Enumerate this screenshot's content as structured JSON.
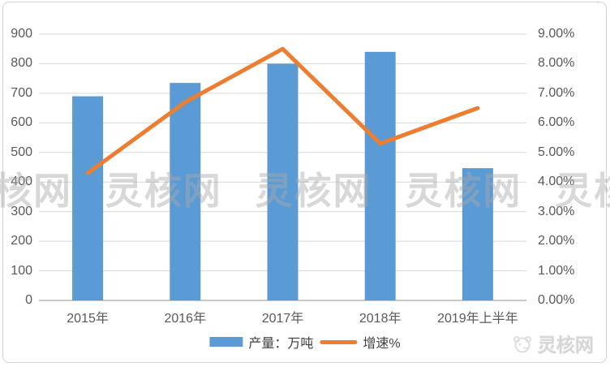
{
  "chart_data": {
    "type": "bar",
    "subtype": "combo-bar-line-dual-axis",
    "categories": [
      "2015年",
      "2016年",
      "2017年",
      "2018年",
      "2019年上半年"
    ],
    "series": [
      {
        "name": "产量：万吨",
        "type": "bar",
        "axis": "left",
        "color": "#5B9BD5",
        "values": [
          690,
          735,
          800,
          840,
          447
        ]
      },
      {
        "name": "增速%",
        "type": "line",
        "axis": "right",
        "color": "#ED7D31",
        "values": [
          4.3,
          6.7,
          8.5,
          5.3,
          6.5
        ]
      }
    ],
    "left_axis": {
      "min": 0,
      "max": 900,
      "step": 100,
      "tick_labels": [
        "0",
        "100",
        "200",
        "300",
        "400",
        "500",
        "600",
        "700",
        "800",
        "900"
      ]
    },
    "right_axis": {
      "min": 0,
      "max": 9,
      "step": 1,
      "tick_labels": [
        "0.00%",
        "1.00%",
        "2.00%",
        "3.00%",
        "4.00%",
        "5.00%",
        "6.00%",
        "7.00%",
        "8.00%",
        "9.00%"
      ]
    },
    "grid": "horizontal-on",
    "legend_position": "bottom-center"
  },
  "legend": {
    "bar_label": "产量：万吨",
    "line_label": "增速%"
  },
  "watermark": {
    "band_text": "灵核网 灵核网 灵核网 灵核网 灵核网",
    "corner_text": "灵核网"
  },
  "colors": {
    "bar": "#5B9BD5",
    "line": "#ED7D31",
    "gridline": "#d9d9d9",
    "axis_line": "#b7b7b7",
    "tick_text": "#595959",
    "card_border": "#d3d3d3"
  }
}
